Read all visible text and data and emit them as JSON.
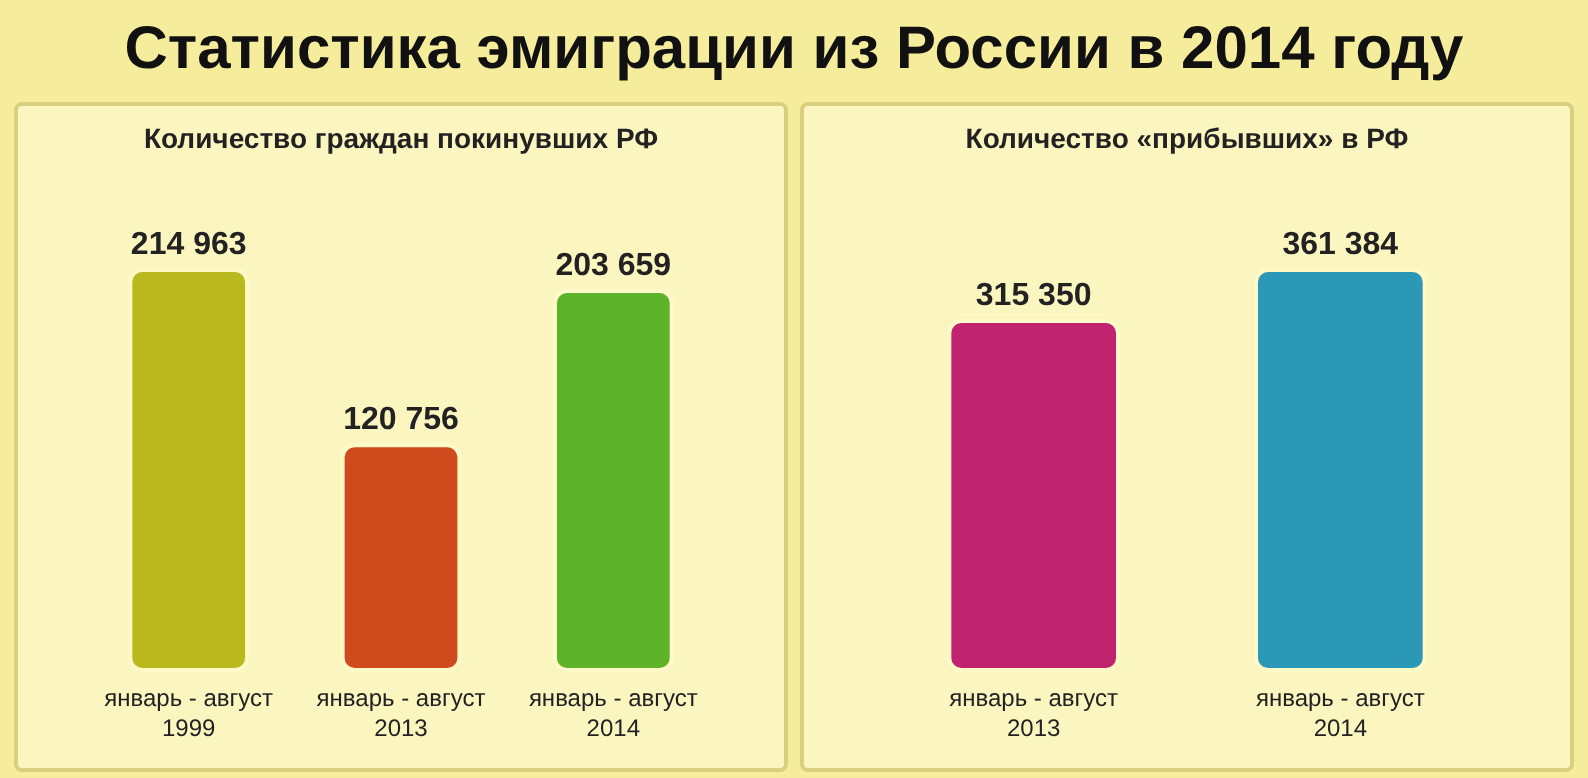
{
  "chart_data": [
    {
      "type": "bar",
      "title": "Количество граждан покинувших РФ",
      "categories": [
        "январь - август 1999",
        "январь - август 2013",
        "январь - август 2014"
      ],
      "values": [
        214963,
        120756,
        203659
      ],
      "colors": [
        "#b9b81c",
        "#cf4a1c",
        "#5db42a"
      ],
      "value_labels": [
        "214 963",
        "120 756",
        "203 659"
      ],
      "annotations": [
        "Статистика эмиграции из России в 2014 году"
      ]
    },
    {
      "type": "bar",
      "title": "Количество «прибывших» в РФ",
      "categories": [
        "январь - август 2013",
        "январь - август 2014"
      ],
      "values": [
        315350,
        361384
      ],
      "colors": [
        "#c0236e",
        "#2a98b6"
      ],
      "value_labels": [
        "315 350",
        "361 384"
      ]
    }
  ]
}
